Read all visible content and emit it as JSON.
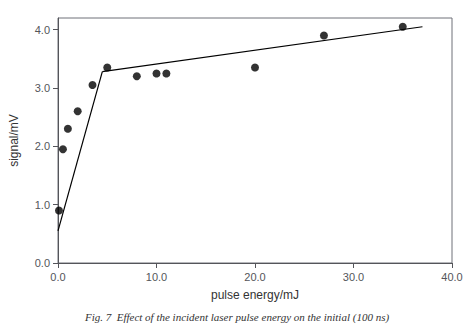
{
  "chart_data": {
    "type": "scatter",
    "caption": "Fig. 7  Effect of the incident laser pulse energy on the initial (100 ns)",
    "xlabel": "pulse energy/mJ",
    "ylabel": "signal/mV",
    "series": [
      {
        "type": "line",
        "color": "#000000",
        "x": [
          0.0,
          4.5
        ],
        "values": [
          0.55,
          3.28
        ]
      },
      {
        "type": "line",
        "color": "#000000",
        "x": [
          4.5,
          37.0
        ],
        "values": [
          3.28,
          4.05
        ]
      },
      {
        "type": "scatter",
        "color": "#000000",
        "x": [
          0.1,
          0.5,
          1.0,
          2.0,
          3.5,
          5.0,
          8.0,
          10.0,
          11.0,
          20.0,
          27.0,
          35.0
        ],
        "values": [
          0.9,
          1.95,
          2.3,
          2.6,
          3.05,
          3.35,
          3.2,
          3.25,
          3.25,
          3.35,
          3.9,
          4.05
        ]
      }
    ],
    "xlim": [
      0.0,
      40.0
    ],
    "ylim": [
      0.0,
      4.2
    ],
    "xticks": [
      {
        "value": 0,
        "label": "0.0"
      },
      {
        "value": 10,
        "label": "10.0"
      },
      {
        "value": 20,
        "label": "20.0"
      },
      {
        "value": 30,
        "label": "30.0"
      },
      {
        "value": 40,
        "label": "40.0"
      }
    ],
    "yticks": [
      {
        "value": 0,
        "label": "0.0"
      },
      {
        "value": 1,
        "label": "1.0"
      },
      {
        "value": 2,
        "label": "2.0"
      },
      {
        "value": 3,
        "label": "3.0"
      },
      {
        "value": 4,
        "label": "4.0"
      }
    ],
    "grid": false
  }
}
